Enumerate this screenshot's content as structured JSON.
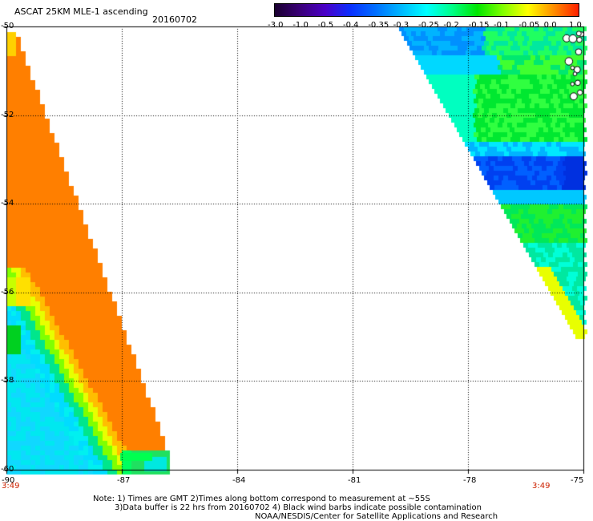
{
  "title": "ASCAT 25KM MLE-1 ascending",
  "date": "20160702",
  "colorbar": {
    "labels": [
      "-3.0",
      "-1.0",
      "-0.5",
      "-0.4",
      "-0.35",
      "-0.3",
      "-0.25",
      "-0.2",
      "-0.15",
      "-0.1",
      "-0.05",
      "0.0",
      "1.0"
    ],
    "colors": [
      "#1a0030",
      "#3a0078",
      "#4a00c8",
      "#0a30ff",
      "#0070ff",
      "#00b8ff",
      "#00ffff",
      "#00ff88",
      "#00e600",
      "#80ff00",
      "#ffff00",
      "#ff9000",
      "#ff2000"
    ]
  },
  "map": {
    "lat_labels": [
      "-50",
      "-52",
      "-54",
      "-56",
      "-58",
      "-60"
    ],
    "lon_labels": [
      "-90",
      "-87",
      "-84",
      "-81",
      "-78",
      "-75"
    ],
    "time_left": "3:49",
    "time_right": "3:49",
    "lat_range": [
      -60,
      -50
    ],
    "lon_range": [
      -90,
      -75
    ],
    "land_color": "#ffffff",
    "coast_color": "#000000"
  },
  "notes": {
    "line1": "Note: 1) Times are GMT 2)Times along bottom correspond to measurement at ~55S",
    "line2": "3)Data buffer is 22 hrs from 20160702 4) Black wind barbs indicate possible contamination",
    "line3": "NOAA/NESDIS/Center for Satellite Applications and Research"
  }
}
